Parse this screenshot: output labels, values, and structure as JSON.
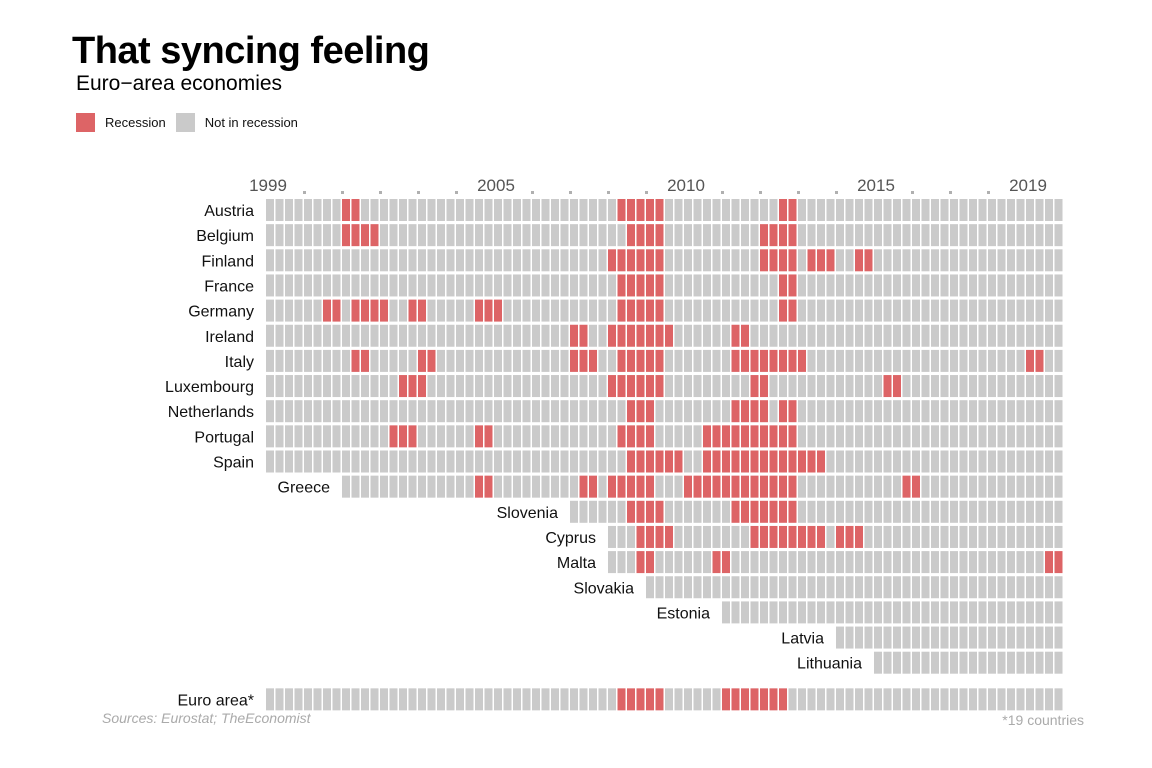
{
  "title": "That syncing feeling",
  "subtitle": "Euro−area economies",
  "legend": {
    "recession": "Recession",
    "not_recession": "Not in recession"
  },
  "colors": {
    "recession": "#dd6466",
    "not_recession": "#cacaca"
  },
  "source": "Sources: Eurostat; TheEconomist",
  "footnote": "*19 countries",
  "chart_data": {
    "type": "heatmap",
    "x_unit": "quarter",
    "first_quarter": "1999Q1",
    "last_quarter": "2019Q4",
    "year_labels": [
      "1999",
      "2005",
      "2010",
      "2015",
      "2019"
    ],
    "status_legend": {
      "1": "Recession",
      "0": "Not in recession"
    },
    "countries": [
      {
        "name": "Austria",
        "data_start": "1999Q1",
        "recession_quarters": [
          "2001Q1",
          "2001Q2",
          "2008Q2",
          "2008Q3",
          "2008Q4",
          "2009Q1",
          "2009Q2",
          "2012Q3",
          "2012Q4"
        ]
      },
      {
        "name": "Belgium",
        "data_start": "1999Q1",
        "recession_quarters": [
          "2001Q1",
          "2001Q2",
          "2001Q3",
          "2001Q4",
          "2008Q3",
          "2008Q4",
          "2009Q1",
          "2009Q2",
          "2012Q1",
          "2012Q2",
          "2012Q3",
          "2012Q4"
        ]
      },
      {
        "name": "Finland",
        "data_start": "1999Q1",
        "recession_quarters": [
          "2008Q1",
          "2008Q2",
          "2008Q3",
          "2008Q4",
          "2009Q1",
          "2009Q2",
          "2012Q1",
          "2012Q2",
          "2012Q3",
          "2012Q4",
          "2013Q2",
          "2013Q3",
          "2013Q4",
          "2014Q3",
          "2014Q4"
        ]
      },
      {
        "name": "France",
        "data_start": "1999Q1",
        "recession_quarters": [
          "2008Q2",
          "2008Q3",
          "2008Q4",
          "2009Q1",
          "2009Q2",
          "2012Q3",
          "2012Q4"
        ]
      },
      {
        "name": "Germany",
        "data_start": "1999Q1",
        "recession_quarters": [
          "2000Q3",
          "2000Q4",
          "2001Q2",
          "2001Q3",
          "2001Q4",
          "2002Q1",
          "2002Q4",
          "2003Q1",
          "2004Q3",
          "2004Q4",
          "2005Q1",
          "2008Q2",
          "2008Q3",
          "2008Q4",
          "2009Q1",
          "2009Q2",
          "2012Q3",
          "2012Q4"
        ]
      },
      {
        "name": "Ireland",
        "data_start": "1999Q1",
        "recession_quarters": [
          "2007Q1",
          "2007Q2",
          "2008Q1",
          "2008Q2",
          "2008Q3",
          "2008Q4",
          "2009Q1",
          "2009Q2",
          "2009Q3",
          "2011Q2",
          "2011Q3"
        ]
      },
      {
        "name": "Italy",
        "data_start": "1999Q1",
        "recession_quarters": [
          "2001Q2",
          "2001Q3",
          "2003Q1",
          "2003Q2",
          "2007Q1",
          "2007Q2",
          "2007Q3",
          "2008Q2",
          "2008Q3",
          "2008Q4",
          "2009Q1",
          "2009Q2",
          "2011Q2",
          "2011Q3",
          "2011Q4",
          "2012Q1",
          "2012Q2",
          "2012Q3",
          "2012Q4",
          "2013Q1",
          "2019Q1",
          "2019Q2"
        ]
      },
      {
        "name": "Luxembourg",
        "data_start": "1999Q1",
        "recession_quarters": [
          "2002Q3",
          "2002Q4",
          "2003Q1",
          "2008Q1",
          "2008Q2",
          "2008Q3",
          "2008Q4",
          "2009Q1",
          "2009Q2",
          "2011Q4",
          "2012Q1",
          "2015Q2",
          "2015Q3"
        ]
      },
      {
        "name": "Netherlands",
        "data_start": "1999Q1",
        "recession_quarters": [
          "2008Q3",
          "2008Q4",
          "2009Q1",
          "2011Q2",
          "2011Q3",
          "2011Q4",
          "2012Q1",
          "2012Q3",
          "2012Q4"
        ]
      },
      {
        "name": "Portugal",
        "data_start": "1999Q1",
        "recession_quarters": [
          "2002Q2",
          "2002Q3",
          "2002Q4",
          "2004Q3",
          "2004Q4",
          "2008Q2",
          "2008Q3",
          "2008Q4",
          "2009Q1",
          "2010Q3",
          "2010Q4",
          "2011Q1",
          "2011Q2",
          "2011Q3",
          "2011Q4",
          "2012Q1",
          "2012Q2",
          "2012Q3",
          "2012Q4"
        ]
      },
      {
        "name": "Spain",
        "data_start": "1999Q1",
        "recession_quarters": [
          "2008Q3",
          "2008Q4",
          "2009Q1",
          "2009Q2",
          "2009Q3",
          "2009Q4",
          "2010Q3",
          "2010Q4",
          "2011Q1",
          "2011Q2",
          "2011Q3",
          "2011Q4",
          "2012Q1",
          "2012Q2",
          "2012Q3",
          "2012Q4",
          "2013Q1",
          "2013Q2",
          "2013Q3"
        ]
      },
      {
        "name": "Greece",
        "data_start": "2001Q1",
        "recession_quarters": [
          "2004Q3",
          "2004Q4",
          "2007Q2",
          "2007Q3",
          "2008Q1",
          "2008Q2",
          "2008Q3",
          "2008Q4",
          "2009Q1",
          "2010Q1",
          "2010Q2",
          "2010Q3",
          "2010Q4",
          "2011Q1",
          "2011Q2",
          "2011Q3",
          "2011Q4",
          "2012Q1",
          "2012Q2",
          "2012Q3",
          "2012Q4",
          "2015Q4",
          "2016Q1"
        ]
      },
      {
        "name": "Slovenia",
        "data_start": "2007Q1",
        "recession_quarters": [
          "2008Q3",
          "2008Q4",
          "2009Q1",
          "2009Q2",
          "2011Q2",
          "2011Q3",
          "2011Q4",
          "2012Q1",
          "2012Q2",
          "2012Q3",
          "2012Q4"
        ]
      },
      {
        "name": "Cyprus",
        "data_start": "2008Q1",
        "recession_quarters": [
          "2008Q4",
          "2009Q1",
          "2009Q2",
          "2009Q3",
          "2011Q4",
          "2012Q1",
          "2012Q2",
          "2012Q3",
          "2012Q4",
          "2013Q1",
          "2013Q2",
          "2013Q3",
          "2014Q1",
          "2014Q2",
          "2014Q3"
        ]
      },
      {
        "name": "Malta",
        "data_start": "2008Q1",
        "recession_quarters": [
          "2008Q4",
          "2009Q1",
          "2010Q4",
          "2011Q1",
          "2019Q3",
          "2019Q4"
        ]
      },
      {
        "name": "Slovakia",
        "data_start": "2009Q1",
        "recession_quarters": []
      },
      {
        "name": "Estonia",
        "data_start": "2011Q1",
        "recession_quarters": []
      },
      {
        "name": "Latvia",
        "data_start": "2014Q1",
        "recession_quarters": []
      },
      {
        "name": "Lithuania",
        "data_start": "2015Q1",
        "recession_quarters": []
      },
      {
        "name": "Euro area*",
        "data_start": "1999Q1",
        "recession_quarters": [
          "2008Q2",
          "2008Q3",
          "2008Q4",
          "2009Q1",
          "2009Q2",
          "2011Q1",
          "2011Q2",
          "2011Q3",
          "2011Q4",
          "2012Q1",
          "2012Q2",
          "2012Q3"
        ]
      }
    ]
  }
}
